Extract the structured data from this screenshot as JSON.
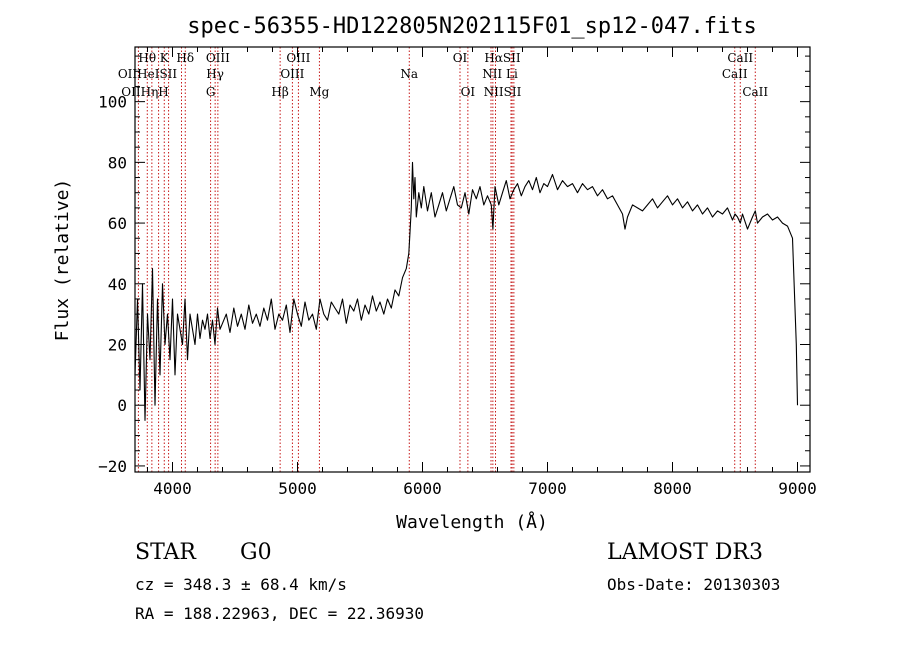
{
  "chart_data": {
    "type": "line",
    "title": "spec-56355-HD122805N202115F01_sp12-047.fits",
    "xlabel": "Wavelength (Å)",
    "ylabel": "Flux (relative)",
    "xlim": [
      3700,
      9100
    ],
    "ylim": [
      -22,
      118
    ],
    "x_ticks": [
      4000,
      5000,
      6000,
      7000,
      8000,
      9000
    ],
    "x_tick_labels": [
      "4000",
      "5000",
      "6000",
      "7000",
      "8000",
      "9000"
    ],
    "y_ticks": [
      -20,
      0,
      20,
      40,
      60,
      80,
      100
    ],
    "y_tick_labels": [
      "−20",
      "0",
      "20",
      "40",
      "60",
      "80",
      "100"
    ],
    "series": [
      {
        "name": "flux",
        "x": [
          3700,
          3720,
          3740,
          3760,
          3780,
          3800,
          3820,
          3840,
          3860,
          3880,
          3900,
          3920,
          3940,
          3960,
          3980,
          4000,
          4020,
          4040,
          4060,
          4080,
          4100,
          4120,
          4140,
          4160,
          4180,
          4200,
          4220,
          4240,
          4260,
          4280,
          4300,
          4320,
          4340,
          4360,
          4380,
          4400,
          4430,
          4460,
          4490,
          4520,
          4550,
          4580,
          4610,
          4640,
          4670,
          4700,
          4730,
          4760,
          4790,
          4820,
          4850,
          4880,
          4910,
          4940,
          4970,
          5000,
          5030,
          5060,
          5090,
          5120,
          5150,
          5180,
          5210,
          5240,
          5270,
          5300,
          5330,
          5360,
          5390,
          5420,
          5450,
          5480,
          5510,
          5540,
          5570,
          5600,
          5630,
          5660,
          5690,
          5720,
          5750,
          5780,
          5810,
          5840,
          5870,
          5890,
          5900,
          5910,
          5920,
          5930,
          5940,
          5950,
          5970,
          5990,
          6010,
          6040,
          6070,
          6100,
          6130,
          6160,
          6190,
          6220,
          6250,
          6280,
          6310,
          6340,
          6370,
          6400,
          6430,
          6460,
          6490,
          6520,
          6550,
          6563,
          6580,
          6610,
          6640,
          6670,
          6700,
          6730,
          6760,
          6790,
          6820,
          6850,
          6880,
          6910,
          6940,
          6970,
          7000,
          7040,
          7080,
          7120,
          7160,
          7200,
          7240,
          7280,
          7320,
          7360,
          7400,
          7440,
          7480,
          7520,
          7560,
          7600,
          7620,
          7640,
          7680,
          7720,
          7760,
          7800,
          7840,
          7880,
          7920,
          7960,
          8000,
          8040,
          8080,
          8120,
          8160,
          8200,
          8240,
          8280,
          8320,
          8360,
          8400,
          8440,
          8480,
          8500,
          8520,
          8542,
          8560,
          8600,
          8640,
          8662,
          8680,
          8720,
          8760,
          8800,
          8840,
          8880,
          8920,
          8960,
          8990,
          9000
        ],
        "y": [
          10,
          35,
          5,
          40,
          -5,
          30,
          15,
          45,
          0,
          35,
          10,
          40,
          20,
          30,
          15,
          35,
          10,
          30,
          25,
          20,
          35,
          15,
          30,
          25,
          20,
          30,
          22,
          28,
          25,
          30,
          22,
          28,
          20,
          32,
          25,
          27,
          30,
          24,
          32,
          26,
          30,
          25,
          33,
          27,
          30,
          26,
          32,
          28,
          35,
          25,
          30,
          28,
          33,
          24,
          35,
          30,
          26,
          34,
          28,
          30,
          25,
          35,
          30,
          28,
          34,
          32,
          30,
          35,
          27,
          33,
          31,
          35,
          28,
          33,
          30,
          36,
          31,
          34,
          30,
          35,
          32,
          38,
          36,
          42,
          45,
          50,
          57,
          65,
          80,
          68,
          75,
          62,
          70,
          65,
          72,
          64,
          70,
          62,
          66,
          70,
          64,
          68,
          72,
          66,
          65,
          70,
          63,
          71,
          68,
          72,
          66,
          69,
          66,
          58,
          72,
          66,
          70,
          74,
          68,
          71,
          73,
          69,
          72,
          74,
          71,
          75,
          70,
          73,
          72,
          76,
          71,
          74,
          72,
          73,
          70,
          73,
          71,
          72,
          69,
          71,
          68,
          69,
          66,
          63,
          58,
          62,
          66,
          65,
          64,
          66,
          68,
          65,
          67,
          69,
          66,
          68,
          65,
          67,
          64,
          66,
          63,
          65,
          62,
          64,
          63,
          65,
          61,
          63,
          62,
          60,
          63,
          58,
          62,
          64,
          60,
          62,
          63,
          61,
          62,
          60,
          59,
          55,
          20,
          0
        ]
      }
    ],
    "lines": [
      {
        "label": "OII",
        "x": 3727
      },
      {
        "label": "Hθ",
        "x": 3798
      },
      {
        "label": "Hη",
        "x": 3835
      },
      {
        "label": "HeI",
        "x": 3889
      },
      {
        "label": "K",
        "x": 3934
      },
      {
        "label": "H",
        "x": 3969
      },
      {
        "label": "SII",
        "x": 4072
      },
      {
        "label": "Hδ",
        "x": 4102
      },
      {
        "label": "G",
        "x": 4305
      },
      {
        "label": "Hγ",
        "x": 4341
      },
      {
        "label": "OIII",
        "x": 4363
      },
      {
        "label": "Hβ",
        "x": 4861
      },
      {
        "label": "OIII",
        "x": 4959
      },
      {
        "label": "OIII",
        "x": 5007
      },
      {
        "label": "Mg",
        "x": 5175
      },
      {
        "label": "Na",
        "x": 5894
      },
      {
        "label": "OI",
        "x": 6300
      },
      {
        "label": "OI",
        "x": 6363
      },
      {
        "label": "NII",
        "x": 6548
      },
      {
        "label": "Hα",
        "x": 6563
      },
      {
        "label": "NII",
        "x": 6584
      },
      {
        "label": "Li",
        "x": 6708
      },
      {
        "label": "SII",
        "x": 6717
      },
      {
        "label": "SII",
        "x": 6731
      },
      {
        "label": "CaII",
        "x": 8498
      },
      {
        "label": "CaII",
        "x": 8542
      },
      {
        "label": "CaII",
        "x": 8662
      }
    ]
  },
  "line_labels": {
    "row1": [
      {
        "text": "Hθ",
        "x": 3798
      },
      {
        "text": "K",
        "x": 3934
      },
      {
        "text": "Hδ",
        "x": 4102
      },
      {
        "text": "OIII",
        "x": 4363
      },
      {
        "text": "OIII",
        "x": 5007
      },
      {
        "text": "OI",
        "x": 6300
      },
      {
        "text": "HαSII",
        "x": 6640
      },
      {
        "text": "CaII",
        "x": 8542
      }
    ],
    "row2": [
      {
        "text": "OIIHeISII",
        "x": 3800
      },
      {
        "text": "Hγ",
        "x": 4341
      },
      {
        "text": "OIII",
        "x": 4959
      },
      {
        "text": "Na",
        "x": 5894
      },
      {
        "text": "NII Li",
        "x": 6620
      },
      {
        "text": "CaII",
        "x": 8498
      }
    ],
    "row3": [
      {
        "text": "OIIHηH",
        "x": 3780
      },
      {
        "text": "G",
        "x": 4305
      },
      {
        "text": "Hβ",
        "x": 4861
      },
      {
        "text": "Mg",
        "x": 5175
      },
      {
        "text": "OI",
        "x": 6363
      },
      {
        "text": "NIISII",
        "x": 6640
      },
      {
        "text": "CaII",
        "x": 8662
      }
    ]
  },
  "info": {
    "class_label": "STAR",
    "subclass": "G0",
    "survey": "LAMOST DR3",
    "cz": "cz = 348.3 ± 68.4 km/s",
    "obs_date": "Obs-Date: 20130303",
    "radec": "RA = 188.22963, DEC =  22.36930"
  }
}
